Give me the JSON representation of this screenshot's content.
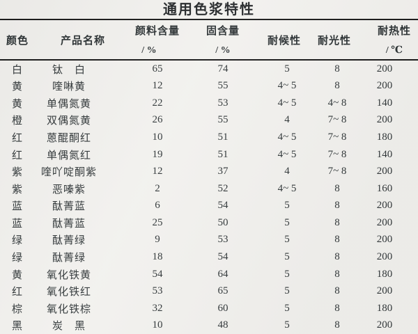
{
  "title": "通用色浆特性",
  "colors": {
    "background": "#f2f1ee",
    "text": "#32383a",
    "rule_line": "#1c1c1c"
  },
  "table": {
    "headers": [
      {
        "label": "颜色",
        "sub": ""
      },
      {
        "label": "产品名称",
        "sub": ""
      },
      {
        "label": "颜料含量",
        "sub": "/ %"
      },
      {
        "label": "固含量",
        "sub": "/ %"
      },
      {
        "label": "耐候性",
        "sub": ""
      },
      {
        "label": "耐光性",
        "sub": ""
      },
      {
        "label": "耐热性",
        "sub": "/ ℃"
      }
    ],
    "rows": [
      [
        "白",
        "钛　白",
        "65",
        "74",
        "5",
        "8",
        "200"
      ],
      [
        "黄",
        "喹啉黄",
        "12",
        "55",
        "4~ 5",
        "8",
        "200"
      ],
      [
        "黄",
        "单偶氮黄",
        "22",
        "53",
        "4~ 5",
        "4~ 8",
        "140"
      ],
      [
        "橙",
        "双偶氮黄",
        "26",
        "55",
        "4",
        "7~ 8",
        "200"
      ],
      [
        "红",
        "蒽醌酮红",
        "10",
        "51",
        "4~ 5",
        "7~ 8",
        "180"
      ],
      [
        "红",
        "单偶氮红",
        "19",
        "51",
        "4~ 5",
        "7~ 8",
        "140"
      ],
      [
        "紫",
        "喹吖啶酮紫",
        "12",
        "37",
        "4",
        "7~ 8",
        "200"
      ],
      [
        "紫",
        "恶嗪紫",
        "2",
        "52",
        "4~ 5",
        "8",
        "160"
      ],
      [
        "蓝",
        "酞菁蓝",
        "6",
        "54",
        "5",
        "8",
        "200"
      ],
      [
        "蓝",
        "酞菁蓝",
        "25",
        "50",
        "5",
        "8",
        "200"
      ],
      [
        "绿",
        "酞菁绿",
        "9",
        "53",
        "5",
        "8",
        "200"
      ],
      [
        "绿",
        "酞菁绿",
        "18",
        "54",
        "5",
        "8",
        "200"
      ],
      [
        "黄",
        "氧化铁黄",
        "54",
        "64",
        "5",
        "8",
        "180"
      ],
      [
        "红",
        "氧化铁红",
        "53",
        "65",
        "5",
        "8",
        "200"
      ],
      [
        "棕",
        "氧化铁棕",
        "32",
        "60",
        "5",
        "8",
        "180"
      ],
      [
        "黑",
        "炭　黑",
        "10",
        "48",
        "5",
        "8",
        "200"
      ]
    ]
  }
}
